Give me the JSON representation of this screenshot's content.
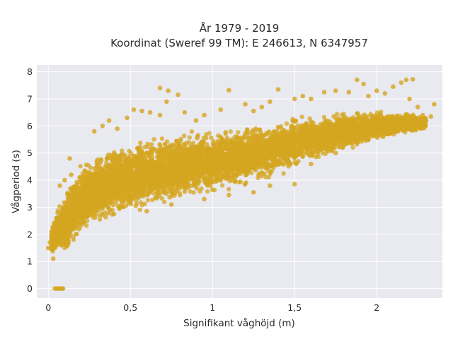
{
  "chart_data": {
    "type": "scatter",
    "title_line1": "År 1979 - 2019",
    "title_line2": "Koordinat (Sweref 99 TM): E 246613, N 6347957",
    "xlabel": "Signifikant våghöjd (m)",
    "ylabel": "Vågperiod (s)",
    "xlim": [
      -0.07,
      2.4
    ],
    "ylim": [
      -0.35,
      8.25
    ],
    "x_ticks": [
      {
        "value": 0,
        "label": "0"
      },
      {
        "value": 0.5,
        "label": "0,5"
      },
      {
        "value": 1,
        "label": "1"
      },
      {
        "value": 1.5,
        "label": "1,5"
      },
      {
        "value": 2,
        "label": "2"
      }
    ],
    "y_ticks": [
      {
        "value": 0,
        "label": "0"
      },
      {
        "value": 1,
        "label": "1"
      },
      {
        "value": 2,
        "label": "2"
      },
      {
        "value": 3,
        "label": "3"
      },
      {
        "value": 4,
        "label": "4"
      },
      {
        "value": 5,
        "label": "5"
      },
      {
        "value": 6,
        "label": "6"
      },
      {
        "value": 7,
        "label": "7"
      },
      {
        "value": 8,
        "label": "8"
      }
    ],
    "grid": true,
    "marker_color": "#d4a520",
    "plot_background": "#e9e9f0",
    "dense_band": {
      "x": [
        0.02,
        0.05,
        0.1,
        0.15,
        0.2,
        0.3,
        0.4,
        0.5,
        0.6,
        0.8,
        1.0,
        1.2,
        1.4,
        1.6,
        1.8,
        2.0,
        2.2,
        2.3
      ],
      "y_low": [
        1.3,
        1.25,
        1.2,
        1.5,
        1.8,
        2.2,
        2.5,
        2.7,
        2.9,
        3.2,
        3.45,
        3.7,
        4.1,
        4.6,
        5.0,
        5.4,
        5.7,
        5.8
      ],
      "y_high": [
        2.2,
        2.9,
        3.5,
        4.2,
        4.6,
        5.1,
        5.3,
        5.5,
        5.6,
        5.8,
        5.9,
        6.1,
        6.3,
        6.5,
        6.6,
        6.6,
        6.5,
        6.4
      ]
    },
    "points": [
      [
        0.04,
        0.0
      ],
      [
        0.05,
        0.0
      ],
      [
        0.06,
        0.0
      ],
      [
        0.07,
        0.0
      ],
      [
        0.08,
        0.0
      ],
      [
        0.09,
        0.0
      ],
      [
        0.0,
        1.5
      ],
      [
        0.01,
        1.7
      ],
      [
        0.02,
        2.1
      ],
      [
        0.03,
        1.1
      ],
      [
        0.07,
        3.8
      ],
      [
        0.1,
        4.0
      ],
      [
        0.13,
        4.8
      ],
      [
        0.14,
        4.2
      ],
      [
        0.12,
        3.5
      ],
      [
        0.28,
        5.8
      ],
      [
        0.33,
        6.0
      ],
      [
        0.37,
        6.2
      ],
      [
        0.42,
        5.9
      ],
      [
        0.48,
        6.3
      ],
      [
        0.52,
        6.6
      ],
      [
        0.57,
        6.55
      ],
      [
        0.62,
        6.5
      ],
      [
        0.68,
        6.4
      ],
      [
        0.72,
        6.9
      ],
      [
        0.68,
        7.4
      ],
      [
        0.73,
        7.3
      ],
      [
        0.79,
        7.15
      ],
      [
        0.83,
        6.5
      ],
      [
        0.9,
        6.2
      ],
      [
        0.95,
        6.4
      ],
      [
        1.05,
        6.6
      ],
      [
        1.1,
        7.32
      ],
      [
        1.2,
        6.8
      ],
      [
        1.25,
        6.55
      ],
      [
        1.3,
        6.7
      ],
      [
        1.35,
        6.9
      ],
      [
        1.4,
        7.35
      ],
      [
        1.5,
        7.0
      ],
      [
        1.55,
        7.1
      ],
      [
        1.6,
        7.0
      ],
      [
        1.68,
        7.25
      ],
      [
        1.75,
        7.3
      ],
      [
        1.83,
        7.25
      ],
      [
        1.88,
        7.7
      ],
      [
        1.92,
        7.55
      ],
      [
        1.95,
        7.1
      ],
      [
        2.0,
        7.3
      ],
      [
        2.05,
        7.2
      ],
      [
        2.1,
        7.45
      ],
      [
        2.15,
        7.6
      ],
      [
        2.18,
        7.7
      ],
      [
        2.22,
        7.72
      ],
      [
        2.2,
        7.0
      ],
      [
        2.25,
        6.7
      ],
      [
        2.28,
        6.4
      ],
      [
        2.3,
        6.2
      ],
      [
        2.33,
        6.35
      ],
      [
        2.35,
        6.8
      ],
      [
        0.4,
        2.75
      ],
      [
        0.6,
        2.85
      ],
      [
        0.75,
        3.1
      ],
      [
        0.95,
        3.3
      ],
      [
        1.1,
        3.45
      ],
      [
        1.25,
        3.55
      ],
      [
        1.35,
        3.8
      ],
      [
        1.5,
        3.85
      ],
      [
        1.6,
        4.6
      ],
      [
        1.75,
        5.0
      ]
    ]
  }
}
